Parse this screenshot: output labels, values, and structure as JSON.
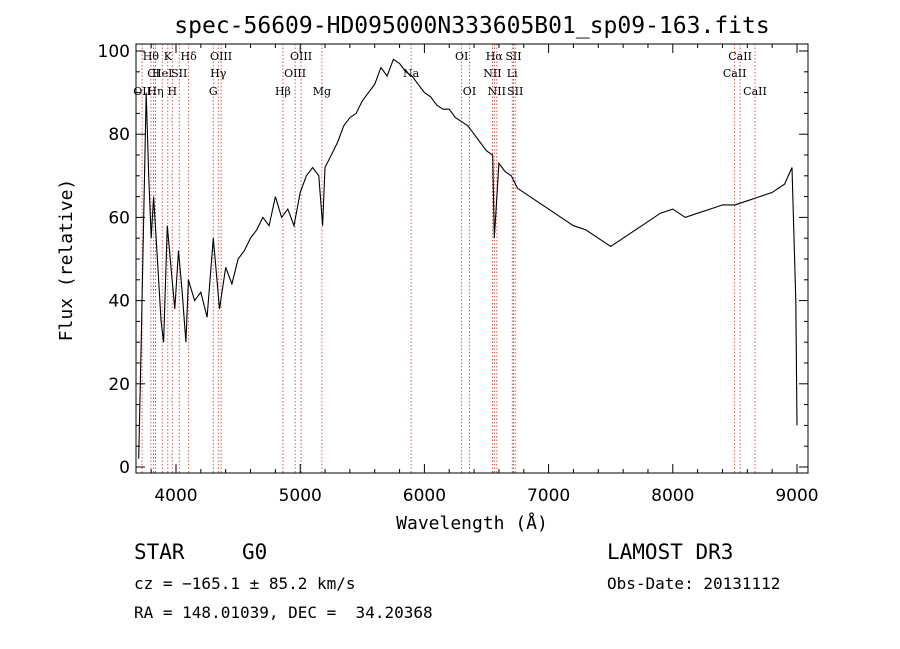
{
  "chart_data": {
    "type": "line",
    "title": "spec-56609-HD095000N333605B01_sp09-163.fits",
    "xlabel": "Wavelength (Å)",
    "ylabel": "Flux (relative)",
    "xlim": [
      3700,
      9100
    ],
    "ylim": [
      0,
      101
    ],
    "xticks": [
      4000,
      5000,
      6000,
      7000,
      8000,
      9000
    ],
    "yticks": [
      0,
      20,
      40,
      60,
      80,
      100
    ],
    "grid": false,
    "series": [
      {
        "name": "flux",
        "x": [
          3700,
          3720,
          3740,
          3760,
          3780,
          3800,
          3820,
          3850,
          3880,
          3900,
          3930,
          3960,
          3990,
          4020,
          4050,
          4080,
          4100,
          4150,
          4200,
          4250,
          4300,
          4350,
          4400,
          4450,
          4500,
          4550,
          4600,
          4650,
          4700,
          4750,
          4800,
          4850,
          4900,
          4950,
          5000,
          5050,
          5100,
          5150,
          5180,
          5200,
          5250,
          5300,
          5350,
          5400,
          5450,
          5500,
          5550,
          5600,
          5650,
          5700,
          5750,
          5800,
          5850,
          5900,
          5950,
          6000,
          6050,
          6100,
          6150,
          6200,
          6250,
          6300,
          6350,
          6400,
          6450,
          6500,
          6550,
          6563,
          6600,
          6650,
          6700,
          6750,
          6800,
          6900,
          7000,
          7100,
          7200,
          7300,
          7400,
          7500,
          7600,
          7700,
          7800,
          7900,
          8000,
          8100,
          8200,
          8300,
          8400,
          8500,
          8600,
          8700,
          8800,
          8900,
          8960,
          8990,
          9000
        ],
        "y": [
          2,
          30,
          60,
          90,
          70,
          55,
          65,
          50,
          35,
          30,
          58,
          48,
          38,
          52,
          42,
          30,
          45,
          40,
          42,
          36,
          55,
          38,
          48,
          44,
          50,
          52,
          55,
          57,
          60,
          58,
          65,
          60,
          62,
          58,
          66,
          70,
          72,
          70,
          58,
          72,
          75,
          78,
          82,
          84,
          85,
          88,
          90,
          92,
          96,
          94,
          98,
          97,
          95,
          94,
          92,
          90,
          89,
          87,
          86,
          86,
          84,
          83,
          82,
          80,
          78,
          76,
          75,
          55,
          73,
          71,
          70,
          67,
          66,
          64,
          62,
          60,
          58,
          57,
          55,
          53,
          55,
          57,
          59,
          61,
          62,
          60,
          61,
          62,
          63,
          63,
          64,
          65,
          66,
          68,
          72,
          40,
          10
        ]
      }
    ],
    "lines": [
      {
        "wl": 3798,
        "label": "Hθ",
        "row": 0
      },
      {
        "wl": 3820,
        "label": "CI",
        "row": 1
      },
      {
        "wl": 3727,
        "label": "OII",
        "row": 2
      },
      {
        "wl": 3835,
        "label": "Hη",
        "row": 2
      },
      {
        "wl": 3889,
        "label": "HeI",
        "row": 1
      },
      {
        "wl": 3934,
        "label": "K",
        "row": 0
      },
      {
        "wl": 3970,
        "label": "H",
        "row": 2
      },
      {
        "wl": 4026,
        "label": "SII",
        "row": 1
      },
      {
        "wl": 4102,
        "label": "Hδ",
        "row": 0
      },
      {
        "wl": 4300,
        "label": "G",
        "row": 2
      },
      {
        "wl": 4340,
        "label": "Hγ",
        "row": 1
      },
      {
        "wl": 4363,
        "label": "OIII",
        "row": 0
      },
      {
        "wl": 4861,
        "label": "Hβ",
        "row": 2
      },
      {
        "wl": 4959,
        "label": "OIII",
        "row": 1
      },
      {
        "wl": 5007,
        "label": "OIII",
        "row": 0
      },
      {
        "wl": 5175,
        "label": "Mg",
        "row": 2
      },
      {
        "wl": 5893,
        "label": "Na",
        "row": 1
      },
      {
        "wl": 6300,
        "label": "OI",
        "row": 0
      },
      {
        "wl": 6363,
        "label": "OI",
        "row": 2
      },
      {
        "wl": 6548,
        "label": "NII",
        "row": 1
      },
      {
        "wl": 6563,
        "label": "Hα",
        "row": 0
      },
      {
        "wl": 6583,
        "label": "NII",
        "row": 2
      },
      {
        "wl": 6707,
        "label": "Li",
        "row": 1
      },
      {
        "wl": 6717,
        "label": "SII",
        "row": 0
      },
      {
        "wl": 6731,
        "label": "SII",
        "row": 2
      },
      {
        "wl": 8498,
        "label": "CaII",
        "row": 1
      },
      {
        "wl": 8542,
        "label": "CaII",
        "row": 0
      },
      {
        "wl": 8662,
        "label": "CaII",
        "row": 2
      }
    ]
  },
  "info": {
    "class": "STAR",
    "subclass": "G0",
    "survey": "LAMOST DR3",
    "cz": "cz = −165.1 ± 85.2 km/s",
    "obs_date": "Obs-Date: 20131112",
    "coords": "RA = 148.01039, DEC =  34.20368"
  }
}
